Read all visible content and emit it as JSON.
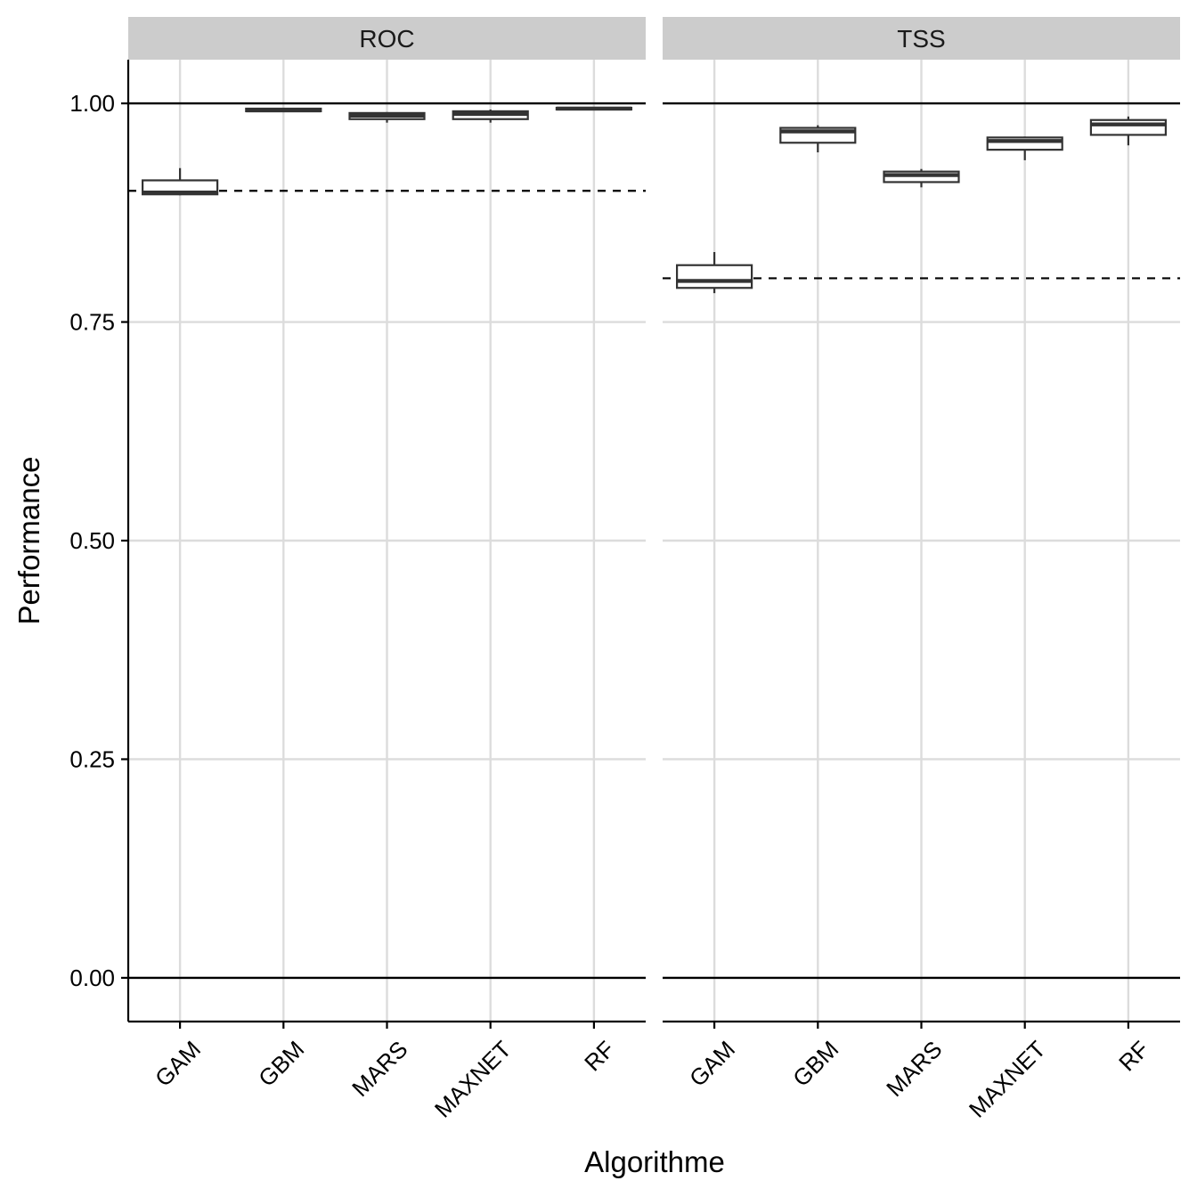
{
  "chart_data": {
    "type": "boxplot",
    "xlabel": "Algorithme",
    "ylabel": "Performance",
    "ylim": [
      -0.05,
      1.05
    ],
    "y_ticks": [
      "0.00",
      "0.25",
      "0.50",
      "0.75",
      "1.00"
    ],
    "y_tick_values": [
      0,
      0.25,
      0.5,
      0.75,
      1.0
    ],
    "categories": [
      "GAM",
      "GBM",
      "MARS",
      "MAXNET",
      "RF"
    ],
    "grid": true,
    "reference_lines": {
      "solid": [
        0,
        1
      ]
    },
    "panels": [
      {
        "title": "ROC",
        "dashed_threshold": 0.9,
        "boxes": [
          {
            "category": "GAM",
            "min": 0.895,
            "q1": 0.896,
            "median": 0.898,
            "q3": 0.912,
            "max": 0.926
          },
          {
            "category": "GBM",
            "min": 0.99,
            "q1": 0.991,
            "median": 0.992,
            "q3": 0.994,
            "max": 0.995
          },
          {
            "category": "MARS",
            "min": 0.978,
            "q1": 0.982,
            "median": 0.986,
            "q3": 0.989,
            "max": 0.99
          },
          {
            "category": "MAXNET",
            "min": 0.978,
            "q1": 0.982,
            "median": 0.988,
            "q3": 0.991,
            "max": 0.993
          },
          {
            "category": "RF",
            "min": 0.993,
            "q1": 0.993,
            "median": 0.994,
            "q3": 0.995,
            "max": 0.996
          }
        ]
      },
      {
        "title": "TSS",
        "dashed_threshold": 0.8,
        "boxes": [
          {
            "category": "GAM",
            "min": 0.783,
            "q1": 0.789,
            "median": 0.797,
            "q3": 0.815,
            "max": 0.83
          },
          {
            "category": "GBM",
            "min": 0.944,
            "q1": 0.955,
            "median": 0.968,
            "q3": 0.972,
            "max": 0.975
          },
          {
            "category": "MARS",
            "min": 0.904,
            "q1": 0.91,
            "median": 0.918,
            "q3": 0.922,
            "max": 0.925
          },
          {
            "category": "MAXNET",
            "min": 0.935,
            "q1": 0.947,
            "median": 0.957,
            "q3": 0.961,
            "max": 0.962
          },
          {
            "category": "RF",
            "min": 0.952,
            "q1": 0.964,
            "median": 0.976,
            "q3": 0.981,
            "max": 0.985
          }
        ]
      }
    ]
  }
}
